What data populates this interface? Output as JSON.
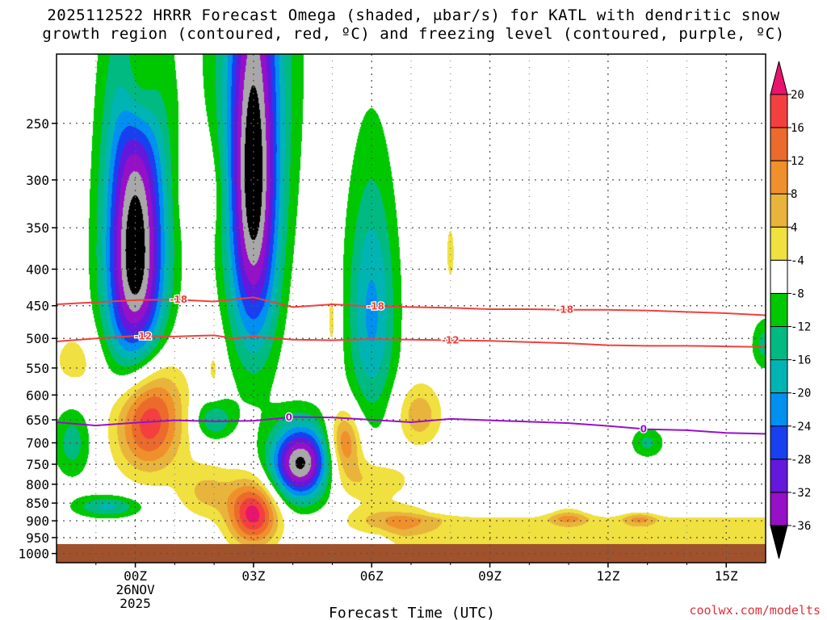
{
  "chart_data": {
    "type": "heatmap",
    "title_line1": "2025112522 HRRR Forecast Omega (shaded, μbar/s) for KATL with dendritic snow",
    "title_line2": "growth region (contoured, red, ºC) and freezing level (contoured, purple, ºC)",
    "xlabel": "Forecast Time (UTC)",
    "credit": "coolwx.com/modelts",
    "x_range_hours": [
      -2,
      16
    ],
    "y_range_hPa": [
      1030,
      200
    ],
    "x_ticks": [
      {
        "hour": 0,
        "label": "00Z",
        "sub1": "26NOV",
        "sub2": "2025"
      },
      {
        "hour": 3,
        "label": "03Z"
      },
      {
        "hour": 6,
        "label": "06Z"
      },
      {
        "hour": 9,
        "label": "09Z"
      },
      {
        "hour": 12,
        "label": "12Z"
      },
      {
        "hour": 15,
        "label": "15Z"
      }
    ],
    "y_ticks": [
      250,
      300,
      350,
      400,
      450,
      500,
      550,
      600,
      650,
      700,
      750,
      800,
      850,
      900,
      950,
      1000
    ],
    "surface_pressure_hPa": 970,
    "colorbar": {
      "levels": [
        "20",
        "16",
        "12",
        "8",
        "4",
        "-4",
        "-8",
        "-12",
        "-16",
        "-20",
        "-24",
        "-28",
        "-32",
        "-36"
      ],
      "colors": [
        "#f43f3f",
        "#ec6a2c",
        "#f0902c",
        "#e8b43c",
        "#f0e040",
        "#ffffff",
        "#00c800",
        "#00ba82",
        "#00b4b4",
        "#0090f0",
        "#1840f0",
        "#6418dc",
        "#9610c8",
        "#a8a8a8",
        "#000000"
      ],
      "top_arrow_color": "#e8146e",
      "bottom_arrow_color": "#000000"
    },
    "omega_features": [
      {
        "hour": 0,
        "hPa": 380,
        "peak": -40,
        "sx": 0.55,
        "sy": 145
      },
      {
        "hour": 3,
        "hPa": 320,
        "peak": -34,
        "sx": 0.45,
        "sy": 140
      },
      {
        "hour": 3,
        "hPa": 180,
        "peak": -10,
        "sx": 0.9,
        "sy": 130
      },
      {
        "hour": 6,
        "hPa": 460,
        "peak": -17,
        "sx": 0.45,
        "sy": 130
      },
      {
        "hour": 4.2,
        "hPa": 750,
        "peak": -38,
        "sx": 0.55,
        "sy": 65
      },
      {
        "hour": 2,
        "hPa": 650,
        "peak": -12,
        "sx": 0.35,
        "sy": 30
      },
      {
        "hour": -1.6,
        "hPa": 700,
        "peak": -10,
        "sx": 0.35,
        "sy": 60
      },
      {
        "hour": -0.7,
        "hPa": 860,
        "peak": -13,
        "sx": 0.6,
        "sy": 22
      },
      {
        "hour": 13,
        "hPa": 700,
        "peak": -9,
        "sx": 0.3,
        "sy": 25
      },
      {
        "hour": 16,
        "hPa": 510,
        "peak": -10,
        "sx": 0.25,
        "sy": 30
      },
      {
        "hour": 0.3,
        "hPa": 640,
        "peak": 28,
        "sx": 0.6,
        "sy": 85
      },
      {
        "hour": 3,
        "hPa": 880,
        "peak": 26,
        "sx": 0.45,
        "sy": 65
      },
      {
        "hour": 5.3,
        "hPa": 700,
        "peak": 18,
        "sx": 0.3,
        "sy": 50
      },
      {
        "hour": 0.1,
        "hPa": 215,
        "peak": 14,
        "sx": 0.35,
        "sy": 35
      },
      {
        "hour": 1.7,
        "hPa": 310,
        "peak": 5,
        "sx": 0.4,
        "sy": 35
      },
      {
        "hour": 7.2,
        "hPa": 640,
        "peak": 11,
        "sx": 0.4,
        "sy": 45
      },
      {
        "hour": 2,
        "hPa": 550,
        "peak": 5,
        "sx": 0.15,
        "sy": 40
      },
      {
        "hour": 5,
        "hPa": 470,
        "peak": 6,
        "sx": 0.13,
        "sy": 60
      },
      {
        "hour": 8,
        "hPa": 380,
        "peak": 5,
        "sx": 0.12,
        "sy": 40
      },
      {
        "hour": 1.8,
        "hPa": 820,
        "peak": 9,
        "sx": 0.5,
        "sy": 50
      },
      {
        "hour": -1.5,
        "hPa": 540,
        "peak": 6,
        "sx": 0.5,
        "sy": 45
      },
      {
        "hour": 5.8,
        "hPa": 790,
        "peak": 8,
        "sx": 0.9,
        "sy": 40
      },
      {
        "hour": 6.5,
        "hPa": 900,
        "peak": 11,
        "sx": 0.8,
        "sy": 30
      },
      {
        "hour": 11,
        "hPa": 890,
        "peak": 10,
        "sx": 0.35,
        "sy": 18
      },
      {
        "hour": 12.8,
        "hPa": 895,
        "peak": 9,
        "sx": 0.3,
        "sy": 15
      }
    ],
    "omega_base": {
      "value": 5,
      "top_hPa": 875,
      "left_hour": 6.2,
      "bottom_hPa": 960
    },
    "contours": [
      {
        "name": "dgz-minus-18",
        "label": "-18",
        "color": "#f0403c",
        "points": [
          [
            -2,
            448
          ],
          [
            -1,
            445
          ],
          [
            0,
            442
          ],
          [
            1,
            441
          ],
          [
            2,
            444
          ],
          [
            3,
            438
          ],
          [
            4,
            452
          ],
          [
            5,
            448
          ],
          [
            6,
            451
          ],
          [
            7,
            452
          ],
          [
            8,
            453
          ],
          [
            9,
            455
          ],
          [
            10,
            455
          ],
          [
            11,
            456
          ],
          [
            12,
            456
          ],
          [
            13,
            457
          ],
          [
            14,
            459
          ],
          [
            15,
            461
          ],
          [
            16,
            464
          ]
        ],
        "label_hours": [
          1.1,
          6.1,
          10.9
        ]
      },
      {
        "name": "dgz-minus-12",
        "label": "-12",
        "color": "#f0403c",
        "points": [
          [
            -2,
            505
          ],
          [
            -1,
            500
          ],
          [
            0,
            496
          ],
          [
            1,
            497
          ],
          [
            2,
            495
          ],
          [
            2.5,
            500
          ],
          [
            3,
            497
          ],
          [
            4,
            502
          ],
          [
            5,
            503
          ],
          [
            6,
            501
          ],
          [
            7,
            502
          ],
          [
            8,
            503
          ],
          [
            9,
            504
          ],
          [
            10,
            506
          ],
          [
            11,
            508
          ],
          [
            12,
            511
          ],
          [
            13,
            512
          ],
          [
            14,
            512
          ],
          [
            15,
            513
          ],
          [
            16,
            514
          ]
        ],
        "label_hours": [
          0.2,
          8.0
        ]
      },
      {
        "name": "freezing-level-0",
        "label": "0",
        "color": "#9a10c8",
        "points": [
          [
            -2,
            655
          ],
          [
            -1,
            662
          ],
          [
            0,
            656
          ],
          [
            1,
            651
          ],
          [
            2,
            653
          ],
          [
            3,
            652
          ],
          [
            4,
            644
          ],
          [
            5,
            645
          ],
          [
            6,
            650
          ],
          [
            7,
            655
          ],
          [
            8,
            648
          ],
          [
            9,
            651
          ],
          [
            10,
            654
          ],
          [
            11,
            657
          ],
          [
            12,
            663
          ],
          [
            13,
            670
          ],
          [
            14,
            672
          ],
          [
            15,
            678
          ],
          [
            16,
            680
          ]
        ],
        "label_hours": [
          3.9,
          12.9
        ]
      }
    ]
  }
}
